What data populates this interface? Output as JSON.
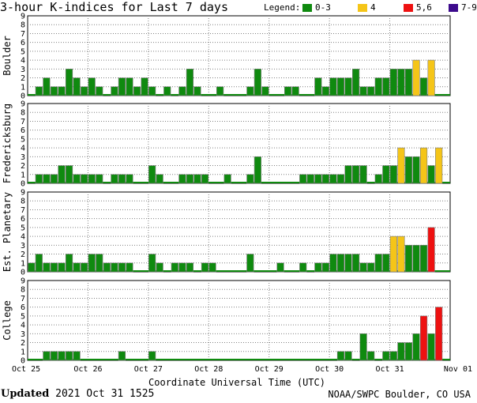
{
  "title": "3-hour K-indices for Last 7 days",
  "legend": {
    "label": "Legend:",
    "items": [
      {
        "text": "0-3",
        "color": "#0f8a0f"
      },
      {
        "text": "4",
        "color": "#f5c518"
      },
      {
        "text": "5,6",
        "color": "#ee1111"
      },
      {
        "text": "7-9",
        "color": "#3c0a8c"
      }
    ]
  },
  "xlabel": "Coordinate Universal Time (UTC)",
  "footer": {
    "updated_label": "Updated",
    "updated_value": "2021 Oct 31 1525",
    "credit": "NOAA/SWPC Boulder, CO USA"
  },
  "chart_data": [
    {
      "type": "bar",
      "ylabel": "Boulder",
      "ylim": [
        0,
        9
      ],
      "yticks": [
        "0",
        "1",
        "2",
        "3",
        "4",
        "5",
        "6",
        "7",
        "8",
        "9"
      ],
      "x_ticks": [
        "Oct 25",
        "Oct 26",
        "Oct 27",
        "Oct 28",
        "Oct 29",
        "Oct 30",
        "Oct 31",
        "Nov 01"
      ],
      "grid": true,
      "values": [
        0,
        1,
        2,
        1,
        1,
        3,
        2,
        1,
        2,
        1,
        0,
        1,
        2,
        2,
        1,
        2,
        1,
        0,
        1,
        0,
        1,
        3,
        1,
        0,
        0,
        1,
        0,
        0,
        0,
        1,
        3,
        1,
        0,
        0,
        1,
        1,
        0,
        0,
        2,
        1,
        2,
        2,
        2,
        3,
        1,
        1,
        2,
        2,
        3,
        3,
        3,
        4,
        2,
        4,
        0,
        0,
        0,
        0
      ]
    },
    {
      "type": "bar",
      "ylabel": "Fredericksburg",
      "ylim": [
        0,
        9
      ],
      "yticks": [
        "0",
        "1",
        "2",
        "3",
        "4",
        "5",
        "6",
        "7",
        "8",
        "9"
      ],
      "x_ticks": [
        "Oct 25",
        "Oct 26",
        "Oct 27",
        "Oct 28",
        "Oct 29",
        "Oct 30",
        "Oct 31",
        "Nov 01"
      ],
      "grid": true,
      "values": [
        0,
        1,
        1,
        1,
        2,
        2,
        1,
        1,
        1,
        1,
        0,
        1,
        1,
        1,
        0,
        0,
        2,
        1,
        0,
        0,
        1,
        1,
        1,
        1,
        0,
        0,
        1,
        0,
        0,
        1,
        3,
        0,
        0,
        0,
        0,
        0,
        1,
        1,
        1,
        1,
        1,
        1,
        2,
        2,
        2,
        0,
        1,
        2,
        2,
        4,
        3,
        3,
        4,
        2,
        4,
        0,
        0,
        0
      ]
    },
    {
      "type": "bar",
      "ylabel": "Est. Planetary",
      "ylim": [
        0,
        9
      ],
      "yticks": [
        "0",
        "1",
        "2",
        "3",
        "4",
        "5",
        "6",
        "7",
        "8",
        "9"
      ],
      "x_ticks": [
        "Oct 25",
        "Oct 26",
        "Oct 27",
        "Oct 28",
        "Oct 29",
        "Oct 30",
        "Oct 31",
        "Nov 01"
      ],
      "grid": true,
      "values": [
        1,
        2,
        1,
        1,
        1,
        2,
        1,
        1,
        2,
        2,
        1,
        1,
        1,
        1,
        0,
        0,
        2,
        1,
        0,
        1,
        1,
        1,
        0,
        1,
        1,
        0,
        0,
        0,
        0,
        2,
        0,
        0,
        0,
        1,
        0,
        0,
        1,
        0,
        1,
        1,
        2,
        2,
        2,
        2,
        1,
        1,
        2,
        2,
        4,
        4,
        3,
        3,
        3,
        5
      ]
    },
    {
      "type": "bar",
      "ylabel": "College",
      "ylim": [
        0,
        9
      ],
      "yticks": [
        "0",
        "1",
        "2",
        "3",
        "4",
        "5",
        "6",
        "7",
        "8",
        "9"
      ],
      "x_ticks": [
        "Oct 25",
        "Oct 26",
        "Oct 27",
        "Oct 28",
        "Oct 29",
        "Oct 30",
        "Oct 31",
        "Nov 01"
      ],
      "grid": true,
      "values": [
        0,
        0,
        1,
        1,
        1,
        1,
        1,
        0,
        0,
        0,
        0,
        0,
        1,
        0,
        0,
        0,
        1,
        0,
        0,
        0,
        0,
        0,
        0,
        0,
        0,
        0,
        0,
        0,
        0,
        0,
        0,
        0,
        0,
        0,
        0,
        0,
        0,
        0,
        0,
        0,
        0,
        1,
        1,
        0,
        3,
        1,
        0,
        1,
        1,
        2,
        2,
        3,
        5,
        3,
        6,
        0,
        0,
        0
      ]
    }
  ]
}
